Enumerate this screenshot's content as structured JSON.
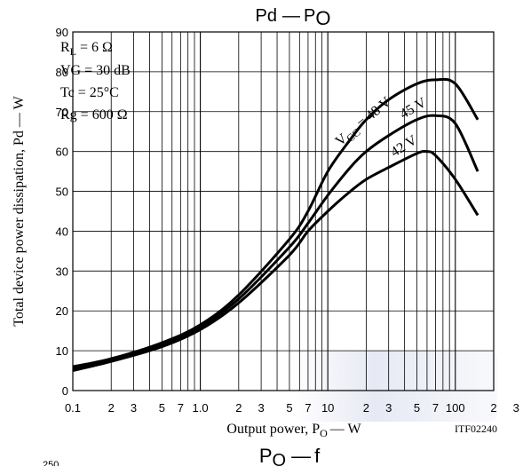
{
  "chart_data": {
    "type": "line",
    "title_main": "Pd",
    "title_sub": "P",
    "title_sub_index": "O",
    "next_title_main": "P",
    "next_title_index": "O",
    "next_title_tail": "f",
    "xscale": "log",
    "xlim": [
      0.1,
      200
    ],
    "ylim": [
      0,
      90
    ],
    "xlabel_main": "Output power, P",
    "xlabel_index": "O",
    "xlabel_tail": "— W",
    "ylabel": "Total device power dissipation, Pd — W",
    "yticks": [
      "0",
      "10",
      "20",
      "30",
      "40",
      "50",
      "60",
      "70",
      "80",
      "90"
    ],
    "xtick_labels": [
      {
        "v": 0.1,
        "t": "0.1"
      },
      {
        "v": 0.2,
        "t": "2"
      },
      {
        "v": 0.3,
        "t": "3"
      },
      {
        "v": 0.5,
        "t": "5"
      },
      {
        "v": 0.7,
        "t": "7"
      },
      {
        "v": 1,
        "t": "1.0"
      },
      {
        "v": 2,
        "t": "2"
      },
      {
        "v": 3,
        "t": "3"
      },
      {
        "v": 5,
        "t": "5"
      },
      {
        "v": 7,
        "t": "7"
      },
      {
        "v": 10,
        "t": "10"
      },
      {
        "v": 20,
        "t": "2"
      },
      {
        "v": 30,
        "t": "3"
      },
      {
        "v": 50,
        "t": "5"
      },
      {
        "v": 70,
        "t": "7"
      },
      {
        "v": 100,
        "t": "100"
      },
      {
        "v": 200,
        "t": "2"
      },
      {
        "v": 300,
        "t": "3"
      }
    ],
    "grid": true,
    "legend_box": [
      {
        "main": "R",
        "index": "L",
        "tail": " = 6 Ω"
      },
      {
        "main": "VG = 30 dB",
        "index": "",
        "tail": ""
      },
      {
        "main": "Tc = 25°C",
        "index": "",
        "tail": ""
      },
      {
        "main": "Rg = 600 Ω",
        "index": "",
        "tail": ""
      }
    ],
    "series": [
      {
        "name": "VCC = 48 V",
        "x": [
          0.1,
          0.2,
          0.5,
          1,
          2,
          5,
          7,
          10,
          15,
          20,
          30,
          50,
          70,
          100,
          150
        ],
        "y": [
          6,
          8,
          12,
          16.5,
          24,
          38,
          45,
          55,
          63,
          68,
          73,
          77,
          78,
          77,
          68
        ]
      },
      {
        "name": "45 V",
        "x": [
          0.1,
          0.2,
          0.5,
          1,
          2,
          5,
          7,
          10,
          15,
          20,
          30,
          50,
          70,
          100,
          150
        ],
        "y": [
          5.5,
          7.6,
          11.5,
          16,
          23,
          36,
          42,
          49,
          56,
          60,
          64,
          68,
          69,
          67,
          55
        ]
      },
      {
        "name": "42 V",
        "x": [
          0.1,
          0.2,
          0.5,
          1,
          2,
          5,
          7,
          10,
          15,
          20,
          30,
          50,
          60,
          70,
          100,
          150
        ],
        "y": [
          5,
          7.3,
          11,
          15.3,
          22,
          34,
          40,
          45,
          50,
          53,
          56,
          59.5,
          60,
          59,
          53,
          44
        ]
      }
    ],
    "series_labels": [
      {
        "main": "V",
        "index": "CC",
        "tail": " = 48 V"
      },
      {
        "main": "45 V",
        "index": "",
        "tail": ""
      },
      {
        "main": "42 V",
        "index": "",
        "tail": ""
      }
    ],
    "code": "ITF02240",
    "next_chart_tick": "250"
  }
}
